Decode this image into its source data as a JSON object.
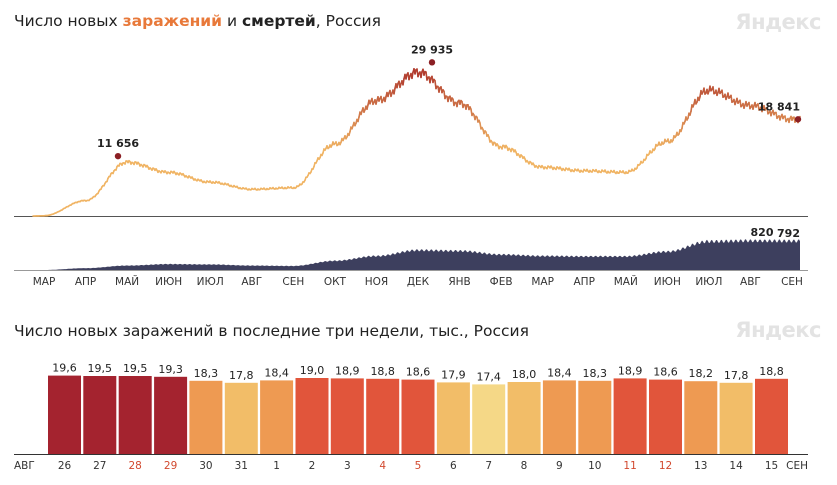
{
  "chart1": {
    "title_prefix": "Число новых ",
    "title_infections": "заражений",
    "title_mid": " и ",
    "title_deaths": "смертей",
    "title_suffix": ", Россия",
    "brand": "Яндекс"
  },
  "chart2": {
    "title": "Число новых заражений в последние три недели, тыс., Россия",
    "brand": "Яндекс"
  },
  "chart_data": [
    {
      "type": "line",
      "title": "Число новых заражений и смертей, Россия",
      "x_tick_labels": [
        "МАР",
        "АПР",
        "МАЙ",
        "ИЮН",
        "ИЮЛ",
        "АВГ",
        "СЕН",
        "ОКТ",
        "НОЯ",
        "ДЕК",
        "ЯНВ",
        "ФЕВ",
        "МАР",
        "АПР",
        "МАЙ",
        "ИЮН",
        "ИЮЛ",
        "АВГ",
        "СЕН"
      ],
      "x": [
        "2020-03",
        "2020-04",
        "2020-05",
        "2020-06",
        "2020-07",
        "2020-08",
        "2020-09",
        "2020-10",
        "2020-11",
        "2020-12",
        "2021-01",
        "2021-02",
        "2021-03",
        "2021-04",
        "2021-05",
        "2021-06",
        "2021-07",
        "2021-08",
        "2021-09"
      ],
      "series": [
        {
          "key": "infections",
          "values_monthly_approx": [
            50,
            3000,
            10500,
            8500,
            6600,
            5200,
            5500,
            14000,
            22500,
            28000,
            22000,
            13500,
            9500,
            8800,
            8500,
            14500,
            24500,
            21500,
            18841
          ],
          "annotations": [
            {
              "x": "2020-05-11",
              "label": "11 656",
              "value": 11656
            },
            {
              "x": "2020-12-24",
              "label": "29 935",
              "value": 29935
            },
            {
              "x": "2021-09-15",
              "label": "18 841",
              "value": 18841
            }
          ],
          "color_low": "#f0b464",
          "color_high": "#b03a2e"
        },
        {
          "key": "deaths",
          "values_monthly_approx": [
            0,
            50,
            120,
            160,
            150,
            120,
            110,
            250,
            380,
            540,
            520,
            420,
            380,
            370,
            370,
            500,
            780,
            800,
            792
          ],
          "annotations": [
            {
              "x": "2021-08-24",
              "label": "820",
              "value": 820
            },
            {
              "x": "2021-09-15",
              "label": "792",
              "value": 792
            }
          ],
          "color": "#3d3f5e"
        }
      ]
    },
    {
      "type": "bar",
      "title": "Число новых заражений в последние три недели, тыс., Россия",
      "month_start_label": "АВГ",
      "month_end_label": "СЕН",
      "categories": [
        "26",
        "27",
        "28",
        "29",
        "30",
        "31",
        "1",
        "2",
        "3",
        "4",
        "5",
        "6",
        "7",
        "8",
        "9",
        "10",
        "11",
        "12",
        "13",
        "14",
        "15"
      ],
      "weekend": [
        false,
        false,
        true,
        true,
        false,
        false,
        false,
        false,
        false,
        true,
        true,
        false,
        false,
        false,
        false,
        false,
        true,
        true,
        false,
        false,
        false
      ],
      "values": [
        19.6,
        19.5,
        19.5,
        19.3,
        18.3,
        17.8,
        18.4,
        19.0,
        18.9,
        18.8,
        18.6,
        17.9,
        17.4,
        18.0,
        18.4,
        18.3,
        18.9,
        18.6,
        18.2,
        17.8,
        18.8
      ],
      "labels": [
        "19,6",
        "19,5",
        "19,5",
        "19,3",
        "18,3",
        "17,8",
        "18,4",
        "19,0",
        "18,9",
        "18,8",
        "18,6",
        "17,9",
        "17,4",
        "18,0",
        "18,4",
        "18,3",
        "18,9",
        "18,6",
        "18,2",
        "17,8",
        "18,8"
      ],
      "ylim": [
        0,
        20
      ],
      "colors": {
        "dark_red": "#a4232f",
        "red": "#e1553b",
        "orange": "#ee9a52",
        "light_orange": "#f2bd68",
        "yellow": "#f5d887",
        "weekend_label": "#d2492f",
        "weekday_label": "#333333"
      }
    }
  ]
}
